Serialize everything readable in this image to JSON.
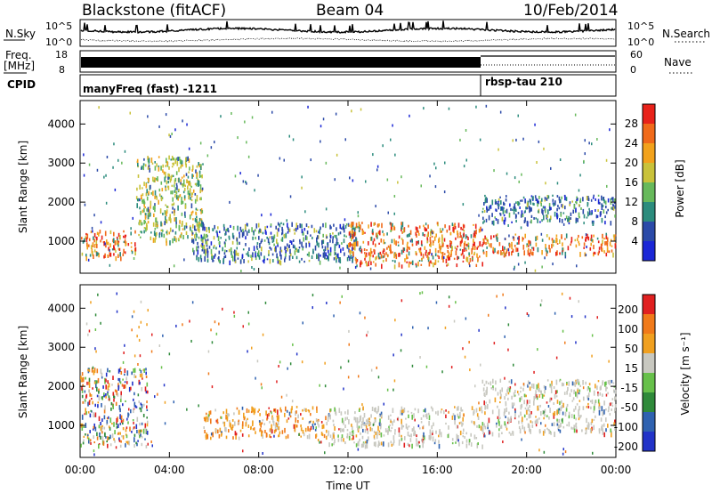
{
  "header": {
    "station": "Blackstone (fitACF)",
    "beam": "Beam 04",
    "date": "10/Feb/2014"
  },
  "top_panels": {
    "nsky_label": "N.Sky",
    "nsky_ticks": [
      "10^5",
      "10^0"
    ],
    "nsearch_label": "N.Search",
    "nsearch_ticks": [
      "10^5",
      "10^0"
    ],
    "freq_label": "Freq.",
    "freq_unit": "[MHz]",
    "freq_ticks": [
      "18",
      "8"
    ],
    "nave_label": "Nave",
    "nave_ticks": [
      "60",
      "0"
    ],
    "cpid_label": "CPID",
    "cpid_modes": [
      {
        "name": "manyFreq (fast) -1211",
        "start_hour": 0,
        "end_hour": 18
      },
      {
        "name": "rbsp-tau 210",
        "start_hour": 18,
        "end_hour": 24
      }
    ]
  },
  "x_axis": {
    "label": "Time UT",
    "ticks": [
      "00:00",
      "04:00",
      "08:00",
      "12:00",
      "16:00",
      "20:00",
      "00:00"
    ]
  },
  "colors": {
    "power_scale": [
      "#1b27d6",
      "#2b4aa8",
      "#2c8c7d",
      "#67b95b",
      "#c9c23a",
      "#f2a21c",
      "#f06a1a",
      "#e8221a"
    ],
    "velocity_scale": [
      "#2233c8",
      "#2f62b0",
      "#2f8a3a",
      "#67c04a",
      "#c8c8c0",
      "#f0a020",
      "#f07a1a",
      "#e02020"
    ]
  },
  "chart_data": [
    {
      "type": "heatmap",
      "title": "",
      "xlabel": "",
      "ylabel": "Slant Range [km]",
      "xlim": [
        0,
        24
      ],
      "ylim": [
        180,
        4600
      ],
      "y_ticks": [
        "1000",
        "2000",
        "3000",
        "4000"
      ],
      "colorbar": {
        "label": "Power [dB]",
        "ticks": [
          "4",
          "8",
          "12",
          "16",
          "20",
          "24",
          "28"
        ],
        "range": [
          0,
          30
        ]
      },
      "scatter_regions": [
        {
          "x": [
            0.0,
            2.5
          ],
          "y": [
            600,
            1300
          ],
          "value": "high"
        },
        {
          "x": [
            2.5,
            5.5
          ],
          "y": [
            1000,
            3200
          ],
          "value": "medium"
        },
        {
          "x": [
            5.0,
            12.5
          ],
          "y": [
            500,
            1500
          ],
          "value": "low"
        },
        {
          "x": [
            12.0,
            18.0
          ],
          "y": [
            400,
            1500
          ],
          "value": "high"
        },
        {
          "x": [
            18.0,
            24.0
          ],
          "y": [
            700,
            1200
          ],
          "value": "high"
        },
        {
          "x": [
            18.0,
            24.0
          ],
          "y": [
            1500,
            2200
          ],
          "value": "low"
        }
      ]
    },
    {
      "type": "heatmap",
      "title": "",
      "xlabel": "Time UT",
      "ylabel": "Slant Range [km]",
      "xlim": [
        0,
        24
      ],
      "ylim": [
        180,
        4600
      ],
      "y_ticks": [
        "1000",
        "2000",
        "3000",
        "4000"
      ],
      "colorbar": {
        "label": "Velocity [m s⁻¹]",
        "ticks": [
          "200",
          "100",
          "50",
          "15",
          "-15",
          "-50",
          "-100",
          "-200"
        ],
        "range": [
          -250,
          250
        ]
      },
      "scatter_regions": [
        {
          "x": [
            0.0,
            3.0
          ],
          "y": [
            500,
            2500
          ],
          "value": "mixed"
        },
        {
          "x": [
            5.5,
            11.0
          ],
          "y": [
            700,
            1500
          ],
          "value": "away"
        },
        {
          "x": [
            11.0,
            18.0
          ],
          "y": [
            500,
            1500
          ],
          "value": "near-zero"
        },
        {
          "x": [
            18.0,
            24.0
          ],
          "y": [
            800,
            2200
          ],
          "value": "near-zero"
        }
      ]
    }
  ]
}
